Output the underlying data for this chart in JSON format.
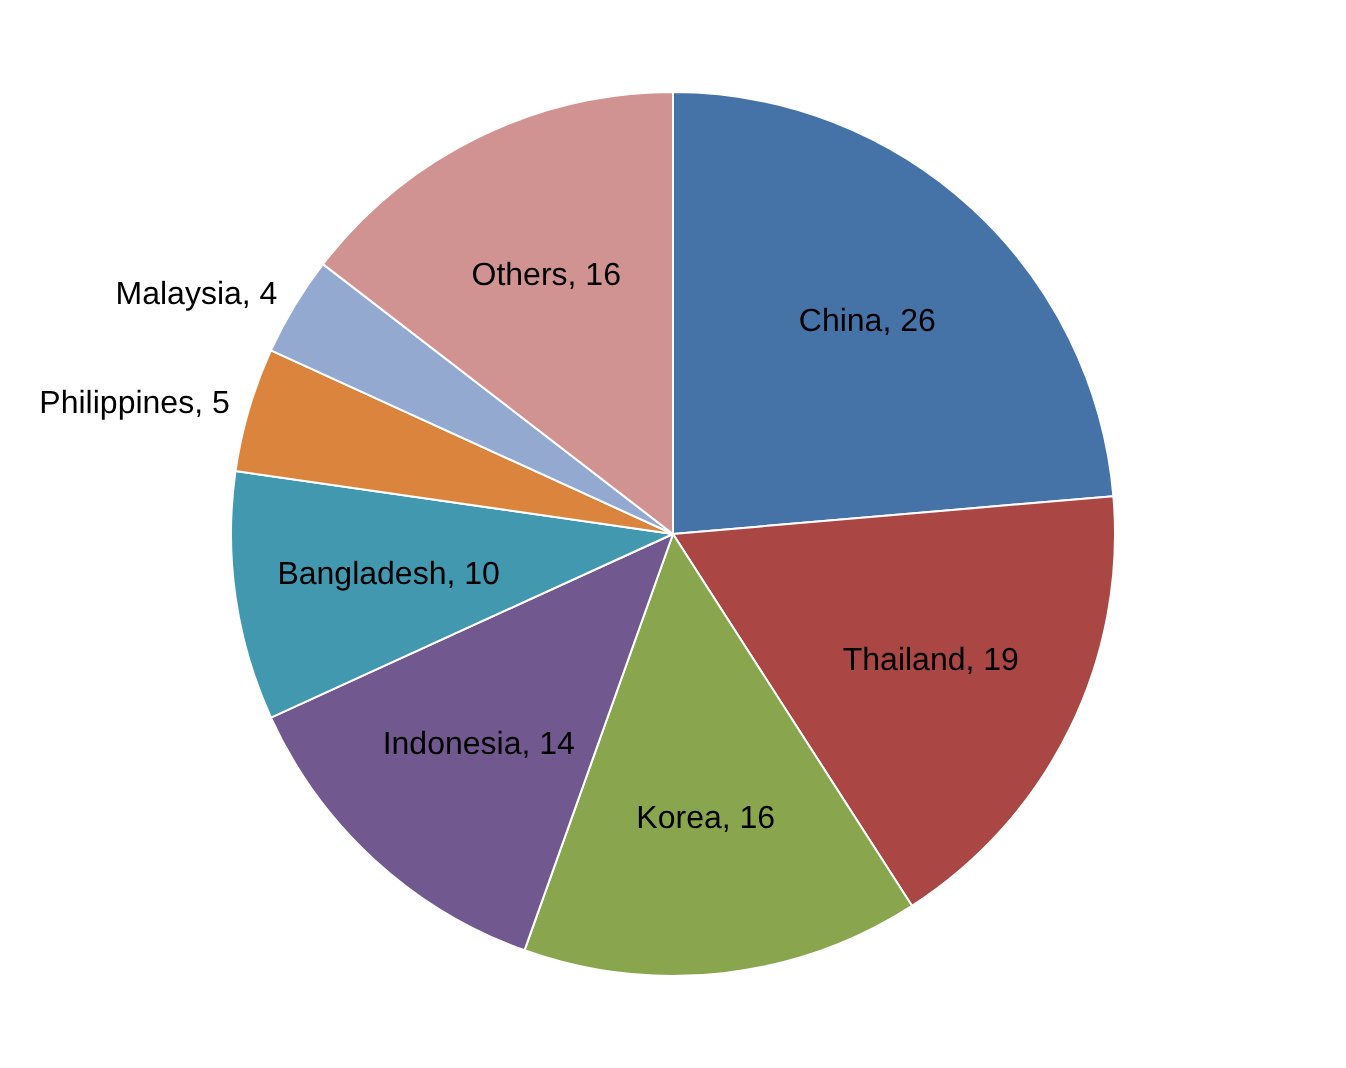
{
  "chart_data": {
    "type": "pie",
    "categories": [
      "China",
      "Thailand",
      "Korea",
      "Indonesia",
      "Bangladesh",
      "Philippines",
      "Malaysia",
      "Others"
    ],
    "values": [
      26,
      19,
      16,
      14,
      10,
      5,
      4,
      16
    ],
    "value_labels": [
      ", 26",
      ", 19",
      ", 16",
      ", 14",
      ", 10",
      ", 5",
      ", 4",
      ", 16"
    ],
    "colors": [
      "#4572a7",
      "#aa4643",
      "#89a54e",
      "#71588f",
      "#4198af",
      "#db843d",
      "#93a9cf",
      "#d19392"
    ],
    "legend": false
  }
}
